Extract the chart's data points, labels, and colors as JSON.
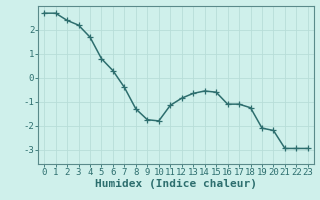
{
  "xlabel": "Humidex (Indice chaleur)",
  "ylabel": "",
  "x": [
    0,
    1,
    2,
    3,
    4,
    5,
    6,
    7,
    8,
    9,
    10,
    11,
    12,
    13,
    14,
    15,
    16,
    17,
    18,
    19,
    20,
    21,
    22,
    23
  ],
  "y": [
    2.7,
    2.7,
    2.4,
    2.2,
    1.7,
    0.8,
    0.3,
    -0.4,
    -1.3,
    -1.75,
    -1.8,
    -1.15,
    -0.85,
    -0.65,
    -0.55,
    -0.6,
    -1.1,
    -1.1,
    -1.25,
    -2.1,
    -2.2,
    -2.95,
    -2.95,
    -2.95
  ],
  "line_color": "#2d6e6e",
  "marker": "+",
  "marker_size": 4,
  "bg_color": "#cff0eb",
  "grid_color": "#b8ddd8",
  "axis_color": "#2d6e6e",
  "spine_color": "#5a8a8a",
  "ylim": [
    -3.6,
    3.0
  ],
  "xlim": [
    -0.5,
    23.5
  ],
  "yticks": [
    -3,
    -2,
    -1,
    0,
    1,
    2
  ],
  "xticks": [
    0,
    1,
    2,
    3,
    4,
    5,
    6,
    7,
    8,
    9,
    10,
    11,
    12,
    13,
    14,
    15,
    16,
    17,
    18,
    19,
    20,
    21,
    22,
    23
  ],
  "tick_label_fontsize": 6.5,
  "xlabel_fontsize": 8,
  "linewidth": 1.1,
  "marker_linewidth": 0.9
}
